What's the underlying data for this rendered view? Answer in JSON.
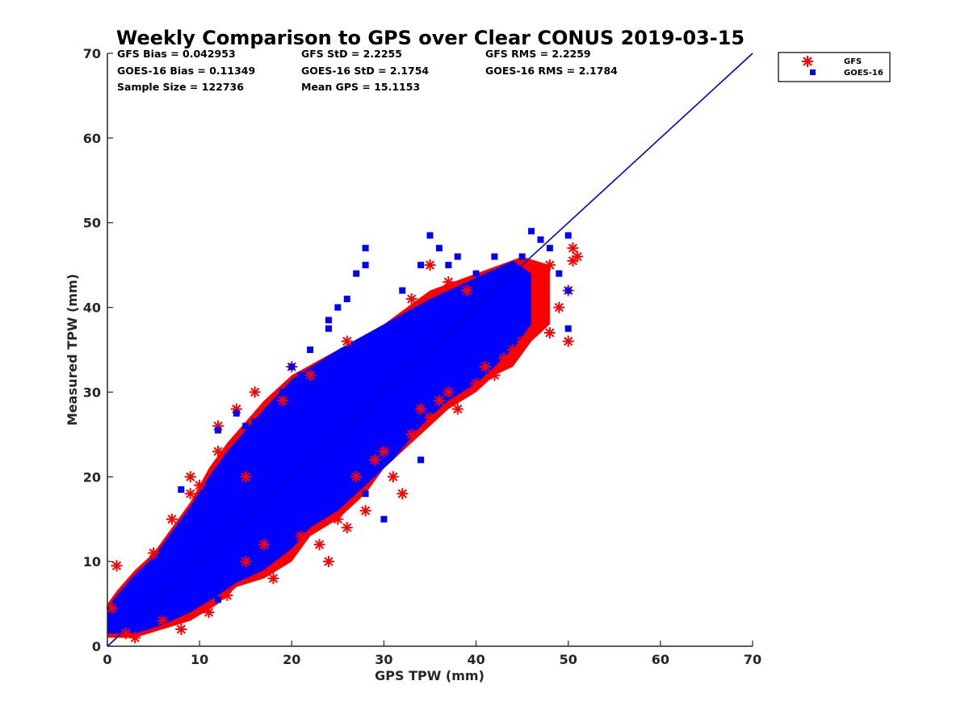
{
  "chart_data": {
    "type": "scatter",
    "title": "Weekly Comparison to GPS over Clear CONUS 2019-03-15",
    "xlabel": "GPS TPW (mm)",
    "ylabel": "Measured TPW (mm)",
    "xlim": [
      0,
      70
    ],
    "ylim": [
      0,
      70
    ],
    "xticks": [
      "0",
      "10",
      "20",
      "30",
      "40",
      "50",
      "60",
      "70"
    ],
    "yticks": [
      "0",
      "10",
      "20",
      "30",
      "40",
      "50",
      "60",
      "70"
    ],
    "grid": false,
    "legend_position": "outside-top-right",
    "stats": [
      "GFS Bias = 0.042953",
      "GFS StD = 2.2255",
      "GFS RMS = 2.2259",
      "GOES-16 Bias = 0.11349",
      "GOES-16 StD = 2.1754",
      "GOES-16 RMS = 2.1784",
      "Sample Size = 122736",
      "Mean GPS = 15.1153"
    ],
    "reference_line": {
      "x": [
        0,
        70
      ],
      "y": [
        0,
        70
      ],
      "color": "#0000cc"
    },
    "series": [
      {
        "name": "GFS",
        "marker": "asterisk",
        "color": "#ff0000",
        "points": [
          [
            0.5,
            4.5
          ],
          [
            1,
            9.5
          ],
          [
            2,
            1.5
          ],
          [
            3,
            1
          ],
          [
            5,
            11
          ],
          [
            6,
            3
          ],
          [
            7,
            15
          ],
          [
            8,
            2
          ],
          [
            9,
            20
          ],
          [
            9,
            18
          ],
          [
            10,
            19
          ],
          [
            11,
            4
          ],
          [
            12,
            26
          ],
          [
            12,
            23
          ],
          [
            13,
            6
          ],
          [
            14,
            28
          ],
          [
            15,
            20
          ],
          [
            15,
            10
          ],
          [
            16,
            30
          ],
          [
            17,
            12
          ],
          [
            18,
            8
          ],
          [
            19,
            29
          ],
          [
            20,
            33
          ],
          [
            21,
            13
          ],
          [
            22,
            32
          ],
          [
            23,
            12
          ],
          [
            24,
            10
          ],
          [
            25,
            15
          ],
          [
            26,
            14
          ],
          [
            27,
            20
          ],
          [
            28,
            16
          ],
          [
            29,
            22
          ],
          [
            30,
            23
          ],
          [
            31,
            20
          ],
          [
            32,
            18
          ],
          [
            33,
            25
          ],
          [
            34,
            28
          ],
          [
            35,
            27
          ],
          [
            36,
            29
          ],
          [
            37,
            30
          ],
          [
            38,
            28
          ],
          [
            39,
            42
          ],
          [
            40,
            31
          ],
          [
            41,
            33
          ],
          [
            42,
            32
          ],
          [
            43,
            34
          ],
          [
            44,
            35
          ],
          [
            45,
            36
          ],
          [
            46,
            37
          ],
          [
            47,
            38
          ],
          [
            48,
            45
          ],
          [
            48,
            37
          ],
          [
            49,
            40
          ],
          [
            50,
            42
          ],
          [
            50,
            36
          ],
          [
            50.5,
            47
          ],
          [
            50.5,
            45.5
          ],
          [
            51,
            46
          ],
          [
            37,
            43
          ],
          [
            33,
            41
          ],
          [
            26,
            36
          ],
          [
            35,
            45
          ]
        ]
      },
      {
        "name": "GOES-16",
        "marker": "square",
        "color": "#0000ff",
        "points": [
          [
            8,
            18.5
          ],
          [
            12,
            25.5
          ],
          [
            14,
            27.5
          ],
          [
            15,
            26
          ],
          [
            16,
            26.5
          ],
          [
            18,
            25
          ],
          [
            19,
            30
          ],
          [
            20,
            33
          ],
          [
            21,
            32
          ],
          [
            22,
            35
          ],
          [
            24,
            37.5
          ],
          [
            24,
            38.5
          ],
          [
            25,
            40
          ],
          [
            26,
            41
          ],
          [
            27,
            44
          ],
          [
            28,
            45
          ],
          [
            28,
            47
          ],
          [
            32,
            42
          ],
          [
            34,
            45
          ],
          [
            35,
            48.5
          ],
          [
            36,
            47
          ],
          [
            37,
            45
          ],
          [
            38,
            46
          ],
          [
            40,
            44
          ],
          [
            42,
            46
          ],
          [
            44,
            45
          ],
          [
            45,
            46
          ],
          [
            46,
            49
          ],
          [
            47,
            48
          ],
          [
            48,
            47
          ],
          [
            49,
            44
          ],
          [
            50,
            48.5
          ],
          [
            50,
            37.5
          ],
          [
            50,
            42
          ],
          [
            28,
            18
          ],
          [
            24,
            20
          ],
          [
            12,
            5.5
          ],
          [
            10,
            8
          ],
          [
            34,
            22
          ],
          [
            30,
            15
          ]
        ]
      }
    ]
  }
}
